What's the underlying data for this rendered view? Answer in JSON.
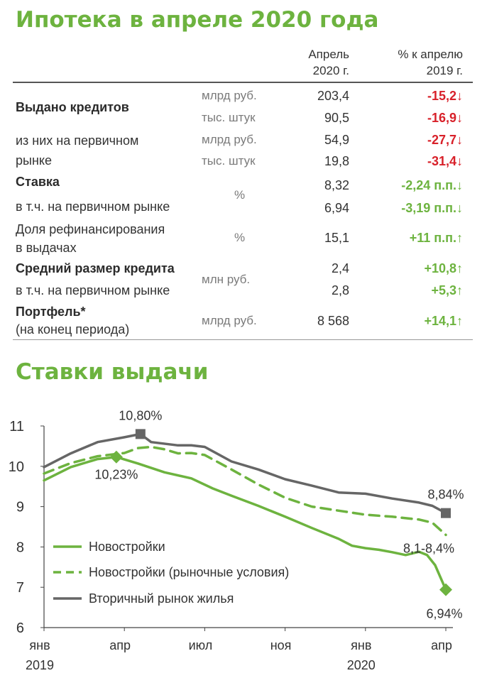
{
  "page_title": "Ипотека в апреле 2020 года",
  "table": {
    "col_headers": {
      "value_line1": "Апрель",
      "value_line2": "2020 г.",
      "change_line1": "% к апрелю",
      "change_line2": "2019 г."
    },
    "rows": [
      {
        "label": "Выдано кредитов",
        "unit": "млрд руб.",
        "value": "203,4",
        "change": "-15,2↓"
      },
      {
        "label": "",
        "unit": "тыс. штук",
        "value": "90,5",
        "change": "-16,9↓"
      },
      {
        "label_line1": "из них на первичном",
        "label_line2": "рынке",
        "unit": "млрд руб.",
        "value": "54,9",
        "change": "-27,7↓"
      },
      {
        "label": "",
        "unit": "тыс. штук",
        "value": "19,8",
        "change": "-31,4↓"
      },
      {
        "label": "Ставка",
        "unit": "%",
        "value": "8,32",
        "change": "-2,24 п.п.↓"
      },
      {
        "label": "в т.ч. на первичном рынке",
        "unit": "",
        "value": "6,94",
        "change": "-3,19 п.п.↓"
      },
      {
        "label_line1": "Доля рефинансирования",
        "label_line2": "в выдачах",
        "unit": "%",
        "value": "15,1",
        "change": "+11 п.п.↑"
      },
      {
        "label": "Средний размер кредита",
        "unit": "млн руб.",
        "value": "2,4",
        "change": "+10,8↑"
      },
      {
        "label": "в т.ч. на первичном рынке",
        "unit": "",
        "value": "2,8",
        "change": "+5,3↑"
      },
      {
        "label_line1": "Портфель*",
        "label_line2": "(на конец периода)",
        "unit": "млрд руб.",
        "value": "8 568",
        "change": "+14,1↑"
      }
    ]
  },
  "colors": {
    "accent": "#6db33f",
    "negative": "#d8212a",
    "secondary_market": "#666666"
  },
  "chart_title": "Ставки выдачи",
  "chart_data": {
    "type": "line",
    "title": "Ставки выдачи",
    "ylim": [
      6,
      11
    ],
    "y_ticks": [
      "6",
      "7",
      "8",
      "9",
      "10",
      "11"
    ],
    "x_range": [
      0,
      15
    ],
    "x_ticks": [
      {
        "x": 0,
        "label": "янв",
        "year": "2019"
      },
      {
        "x": 3,
        "label": "апр",
        "year": ""
      },
      {
        "x": 6,
        "label": "июл",
        "year": ""
      },
      {
        "x": 9,
        "label": "ноя",
        "year": ""
      },
      {
        "x": 12,
        "label": "янв",
        "year": "2020"
      },
      {
        "x": 15,
        "label": "апр",
        "year": ""
      }
    ],
    "grid": false,
    "legend_position": "bottom-left",
    "series": [
      {
        "name": "Новостройки",
        "style": "solid",
        "color": "#6db33f",
        "x": [
          0,
          1,
          2,
          2.7,
          3.5,
          4.5,
          5.5,
          6.3,
          7,
          8,
          9,
          10,
          11,
          11.5,
          12,
          12.5,
          13,
          13.5,
          14,
          14.3,
          14.6,
          15
        ],
        "y": [
          9.65,
          9.98,
          10.18,
          10.23,
          10.07,
          9.85,
          9.7,
          9.45,
          9.27,
          9.02,
          8.75,
          8.47,
          8.2,
          8.03,
          7.97,
          7.93,
          7.87,
          7.8,
          7.88,
          7.8,
          7.55,
          6.94
        ]
      },
      {
        "name": "Новостройки (рыночные условия)",
        "style": "dashed",
        "color": "#6db33f",
        "x": [
          0,
          1,
          2,
          3,
          3.5,
          4,
          4.5,
          5,
          5.5,
          6,
          7,
          8,
          9,
          10,
          11,
          12,
          13,
          14,
          14.5,
          15
        ],
        "y": [
          9.82,
          10.08,
          10.25,
          10.33,
          10.45,
          10.48,
          10.42,
          10.32,
          10.33,
          10.28,
          9.92,
          9.55,
          9.22,
          9.0,
          8.9,
          8.8,
          8.75,
          8.68,
          8.6,
          8.3
        ]
      },
      {
        "name": "Вторичный рынок жилья",
        "style": "solid",
        "color": "#666666",
        "x": [
          0,
          1,
          2,
          3,
          3.6,
          4,
          5,
          5.5,
          6,
          7,
          8,
          9,
          10,
          11,
          12,
          13,
          14,
          14.5,
          15
        ],
        "y": [
          9.98,
          10.32,
          10.6,
          10.72,
          10.8,
          10.6,
          10.52,
          10.52,
          10.48,
          10.12,
          9.92,
          9.68,
          9.52,
          9.35,
          9.32,
          9.2,
          9.1,
          9.02,
          8.84
        ]
      }
    ],
    "markers": [
      {
        "series": 0,
        "x": 2.7,
        "y": 10.23,
        "shape": "diamond",
        "label": "10,23%"
      },
      {
        "series": 2,
        "x": 3.6,
        "y": 10.8,
        "shape": "square",
        "label": "10,80%"
      },
      {
        "series": 2,
        "x": 15,
        "y": 8.84,
        "shape": "square",
        "label": "8,84%"
      },
      {
        "series": 0,
        "x": 15,
        "y": 6.94,
        "shape": "diamond",
        "label": "6,94%"
      }
    ],
    "annotations": [
      "8,1-8,4%"
    ]
  }
}
